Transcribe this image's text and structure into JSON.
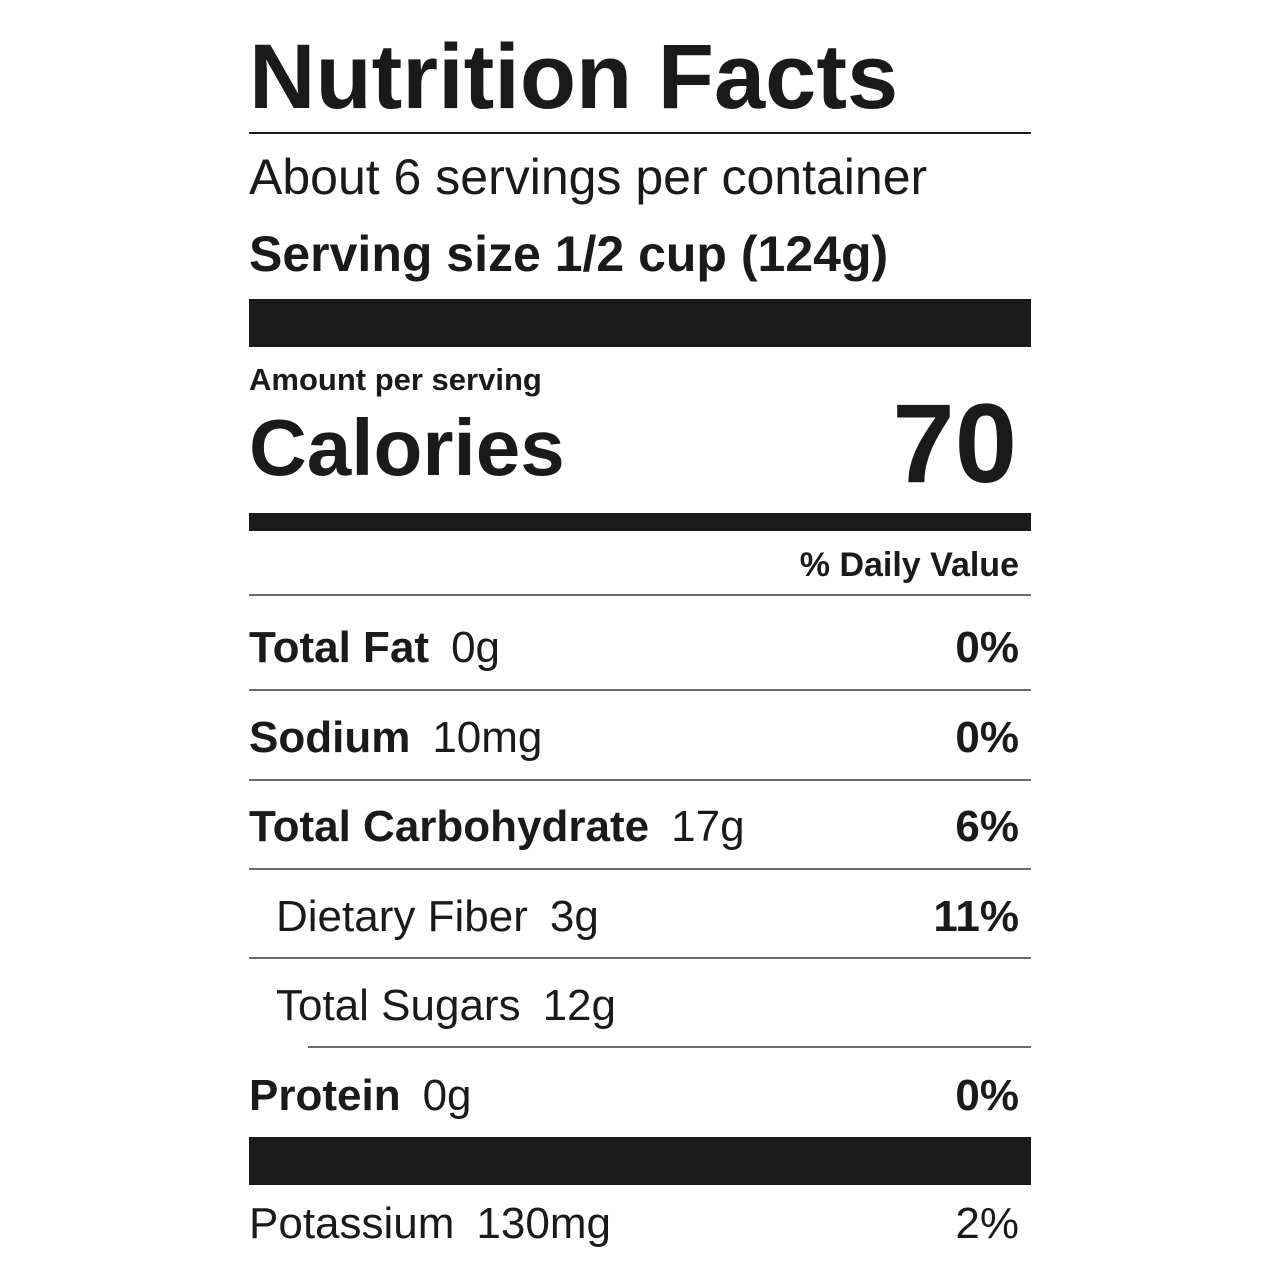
{
  "title": "Nutrition Facts",
  "servings_per_container": "About 6 servings per container",
  "serving_size": "Serving size 1/2 cup (124g)",
  "amount_per_serving": "Amount per serving",
  "calories": {
    "label": "Calories",
    "value": "70"
  },
  "daily_value_header": "% Daily Value",
  "nutrients": [
    {
      "name": "Total Fat",
      "amount": "0g",
      "dv": "0%"
    },
    {
      "name": "Sodium",
      "amount": "10mg",
      "dv": "0%"
    },
    {
      "name": "Total Carbohydrate",
      "amount": "17g",
      "dv": "6%"
    },
    {
      "name": "Dietary Fiber",
      "amount": "3g",
      "dv": "11%"
    },
    {
      "name": "Total Sugars",
      "amount": "12g",
      "dv": ""
    },
    {
      "name": "Protein",
      "amount": "0g",
      "dv": "0%"
    },
    {
      "name": "Potassium",
      "amount": "130mg",
      "dv": "2%"
    }
  ],
  "colors": {
    "ink": "#1a1a1a",
    "background": "#ffffff"
  }
}
